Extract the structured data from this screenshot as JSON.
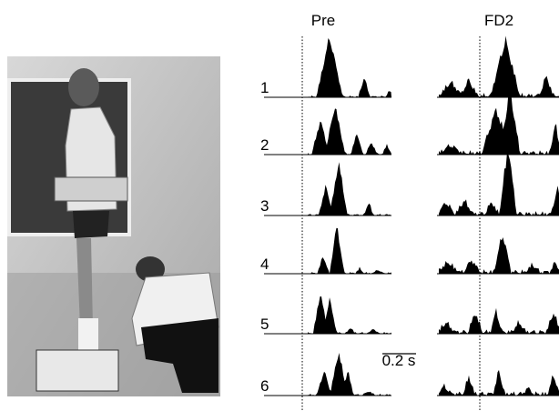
{
  "columns": [
    "Pre",
    "FD2"
  ],
  "rows": [
    "1",
    "2",
    "3",
    "4",
    "5",
    "6"
  ],
  "scale_bar": "0.2 s"
}
